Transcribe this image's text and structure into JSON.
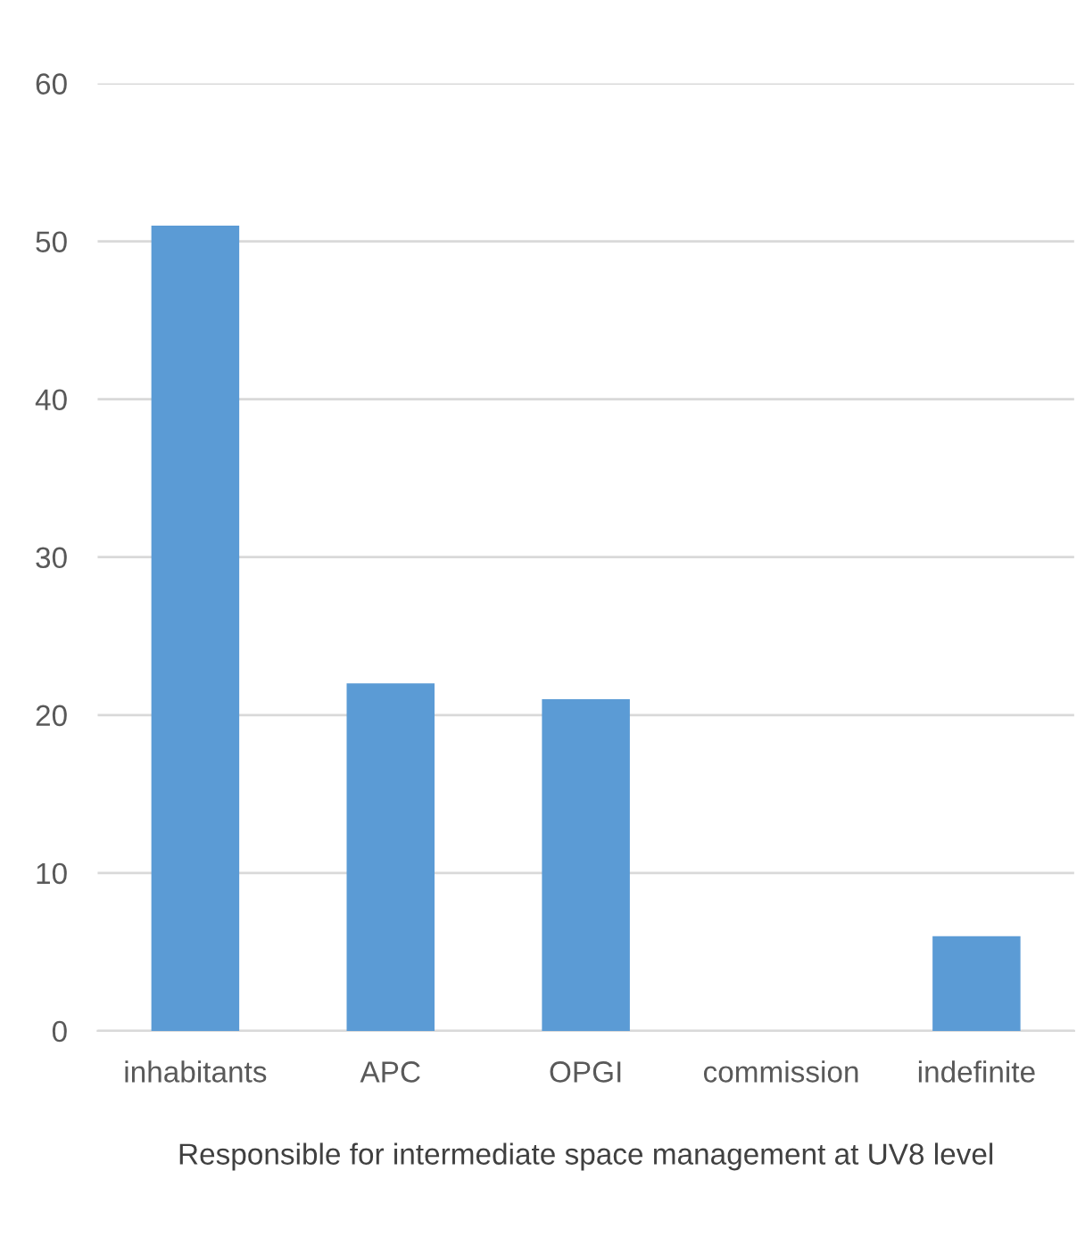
{
  "chart_data": {
    "type": "bar",
    "xlabel": "Responsible for intermediate space management at UV8 level",
    "categories": [
      "inhabitants",
      "APC",
      "OPGI",
      "commission",
      "indefinite"
    ],
    "values": [
      51,
      22,
      21,
      0,
      6
    ],
    "color": "#5b9bd5",
    "ylim": [
      0,
      60
    ],
    "yticks": [
      0,
      10,
      20,
      30,
      40,
      50,
      60
    ],
    "grid": "y",
    "legend": false
  }
}
